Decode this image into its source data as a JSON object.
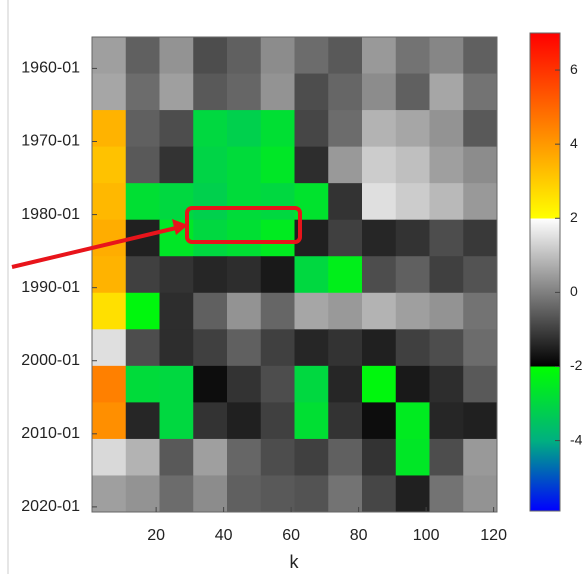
{
  "chart_data": {
    "type": "heatmap",
    "xlabel": "k",
    "xlim": [
      1,
      121
    ],
    "xticks": [
      20,
      40,
      60,
      80,
      100,
      120
    ],
    "ylim": [
      1955.7,
      2020.7
    ],
    "y_reversed": true,
    "yticks": [
      {
        "value": 1960,
        "label": "1960-01"
      },
      {
        "value": 1970,
        "label": "1970-01"
      },
      {
        "value": 1980,
        "label": "1980-01"
      },
      {
        "value": 1990,
        "label": "1990-01"
      },
      {
        "value": 2000,
        "label": "2000-01"
      },
      {
        "value": 2010,
        "label": "2010-01"
      },
      {
        "value": 2020,
        "label": "2020-01"
      }
    ],
    "xbins": [
      1,
      11,
      21,
      31,
      41,
      51,
      61,
      71,
      81,
      91,
      101,
      111,
      121
    ],
    "ybins": [
      1955.7,
      1960.7,
      1965.7,
      1970.7,
      1975.7,
      1980.7,
      1985.7,
      1990.7,
      1995.7,
      2000.7,
      2005.7,
      2010.7,
      2015.7,
      2020.7
    ],
    "values": [
      [
        0.5,
        -0.5,
        0.3,
        -0.8,
        -0.5,
        0.2,
        -0.3,
        -0.6,
        0.4,
        -0.2,
        0.1,
        -0.5
      ],
      [
        0.6,
        -0.3,
        0.5,
        -0.6,
        -0.4,
        0.3,
        -0.8,
        -0.4,
        0.2,
        -0.5,
        0.6,
        -0.2
      ],
      [
        3.5,
        -0.5,
        -0.8,
        -3,
        -3.2,
        -2.8,
        -0.9,
        -0.3,
        0.8,
        0.6,
        0.3,
        -0.6
      ],
      [
        3.2,
        -0.6,
        -1.2,
        -3.1,
        -2.9,
        -2.6,
        -1.3,
        0.4,
        1.2,
        1,
        0.5,
        0.2
      ],
      [
        3.4,
        -2.8,
        -3,
        -3.2,
        -2.9,
        -3,
        -2.7,
        -1.2,
        1.5,
        1.2,
        0.9,
        0.4
      ],
      [
        3.6,
        -1.5,
        -2.6,
        -3,
        -2.8,
        -2.5,
        -1.5,
        -1,
        -1.4,
        -1.2,
        -0.8,
        -1.1
      ],
      [
        3.5,
        -1,
        -1.2,
        -1.4,
        -1.3,
        -1.6,
        -3,
        -2.4,
        -0.8,
        -0.5,
        -1,
        -0.7
      ],
      [
        2.6,
        -2.2,
        -1.3,
        -0.5,
        0.3,
        -0.4,
        0.6,
        0.4,
        0.8,
        0.5,
        0.3,
        -0.2
      ],
      [
        1.5,
        -0.8,
        -1.3,
        -1,
        -0.5,
        -1,
        -1.4,
        -1.2,
        -1.5,
        -1,
        -0.8,
        -0.3
      ],
      [
        4.5,
        -2.9,
        -3,
        -1.8,
        -1.2,
        -0.8,
        -3,
        -1.4,
        -2.2,
        -1.6,
        -1.3,
        -0.6
      ],
      [
        4.2,
        -1.4,
        -3,
        -1.2,
        -1.5,
        -1,
        -2.8,
        -1.2,
        -1.8,
        -2.5,
        -1.4,
        -1.5
      ],
      [
        1.4,
        0.8,
        -0.6,
        0.5,
        -0.4,
        -0.8,
        -1,
        -0.5,
        -1.2,
        -2.6,
        -0.8,
        0.4
      ],
      [
        0.5,
        0.3,
        -0.3,
        0.2,
        -0.5,
        -0.6,
        -0.7,
        -0.2,
        -0.9,
        -1.5,
        -0.2,
        0.3
      ]
    ],
    "clim": [
      -5.9,
      7
    ],
    "cticks": [
      -4,
      -2,
      0,
      2,
      4,
      6
    ],
    "colormap": [
      {
        "value": -5.9,
        "color": "#0000ff"
      },
      {
        "value": -4,
        "color": "#00b080"
      },
      {
        "value": -2,
        "color": "#00ff00"
      },
      {
        "value": -2,
        "color": "#000000"
      },
      {
        "value": 2,
        "color": "#ffffff"
      },
      {
        "value": 2,
        "color": "#ffff00"
      },
      {
        "value": 4,
        "color": "#ff9900"
      },
      {
        "value": 7,
        "color": "#ff0000"
      }
    ]
  }
}
